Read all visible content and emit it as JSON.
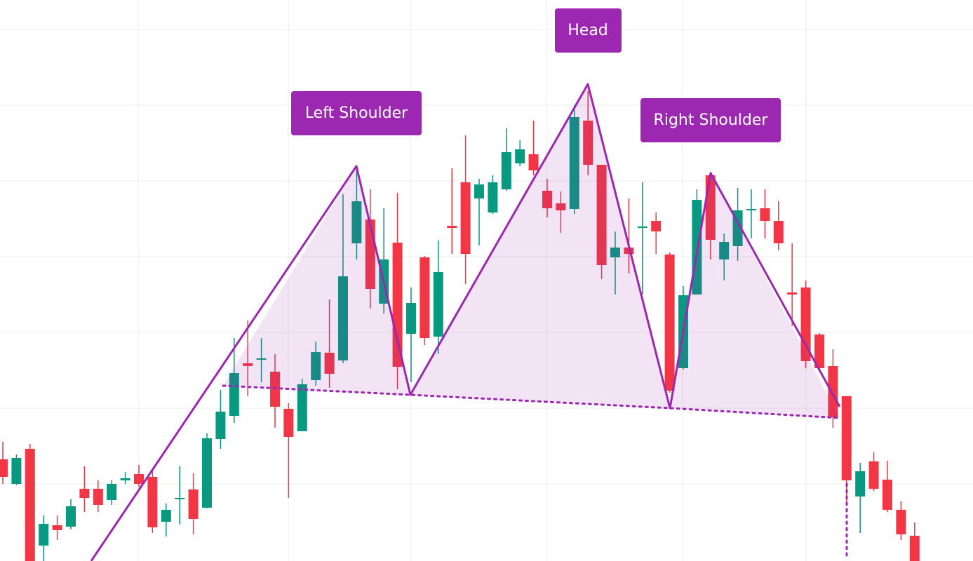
{
  "chart_data": {
    "type": "candlestick",
    "up_color": "#089981",
    "down_color": "#f23645",
    "grid": true,
    "ylim": [
      0,
      800
    ],
    "yticks": [
      110,
      218,
      326,
      434,
      542,
      650,
      758
    ],
    "xlim": [
      -0.206,
      71.29
    ],
    "xticks": [
      9.95,
      20.98,
      29.95,
      39.95,
      49.95,
      59.02
    ],
    "annotations": [
      "Left Shoulder",
      "Head",
      "Right Shoulder"
    ],
    "open": [
      145,
      110,
      160,
      22,
      51,
      49,
      103,
      103,
      87,
      115,
      124,
      120,
      56,
      88,
      102,
      76,
      174,
      207,
      282,
      287,
      270,
      217,
      185,
      258,
      297,
      286,
      453,
      487,
      367,
      454,
      324,
      433,
      320,
      478,
      540,
      517,
      497,
      530,
      567,
      580,
      528,
      510,
      502,
      628,
      565,
      433,
      447,
      475,
      485,
      437,
      275,
      380,
      550,
      430,
      449,
      500,
      503,
      485,
      383,
      390,
      323,
      278,
      235,
      92,
      142,
      116,
      73,
      36
    ],
    "high": [
      170,
      152,
      167,
      65,
      65,
      88,
      135,
      115,
      115,
      127,
      137,
      130,
      82,
      135,
      125,
      182,
      244,
      318,
      343,
      318,
      295,
      225,
      260,
      313,
      373,
      523,
      562,
      530,
      503,
      525,
      390,
      435,
      457,
      560,
      607,
      545,
      550,
      617,
      600,
      628,
      545,
      527,
      650,
      670,
      565,
      470,
      517,
      540,
      497,
      440,
      392,
      530,
      555,
      467,
      532,
      530,
      530,
      513,
      453,
      400,
      325,
      302,
      235,
      140,
      155,
      143,
      85,
      55
    ],
    "low": [
      110,
      108,
      0,
      0,
      30,
      45,
      70,
      70,
      80,
      110,
      105,
      40,
      35,
      52,
      38,
      75,
      160,
      197,
      235,
      255,
      190,
      90,
      185,
      250,
      247,
      282,
      430,
      360,
      353,
      245,
      255,
      308,
      295,
      438,
      395,
      450,
      495,
      528,
      563,
      550,
      490,
      468,
      495,
      550,
      402,
      380,
      410,
      380,
      438,
      240,
      273,
      380,
      430,
      400,
      428,
      460,
      460,
      443,
      335,
      275,
      270,
      190,
      80,
      40,
      100,
      70,
      30,
      0
    ],
    "close": [
      120,
      147,
      0,
      53,
      44,
      78,
      90,
      80,
      110,
      118,
      110,
      48,
      73,
      90,
      60,
      175,
      213,
      268,
      278,
      289,
      220,
      177,
      252,
      298,
      267,
      406,
      513,
      388,
      430,
      277,
      368,
      318,
      412,
      475,
      438,
      537,
      540,
      583,
      587,
      557,
      503,
      500,
      633,
      565,
      422,
      447,
      438,
      477,
      470,
      243,
      379,
      515,
      458,
      455,
      500,
      502,
      485,
      453,
      380,
      285,
      275,
      205,
      115,
      128,
      103,
      73,
      38,
      0
    ]
  }
}
